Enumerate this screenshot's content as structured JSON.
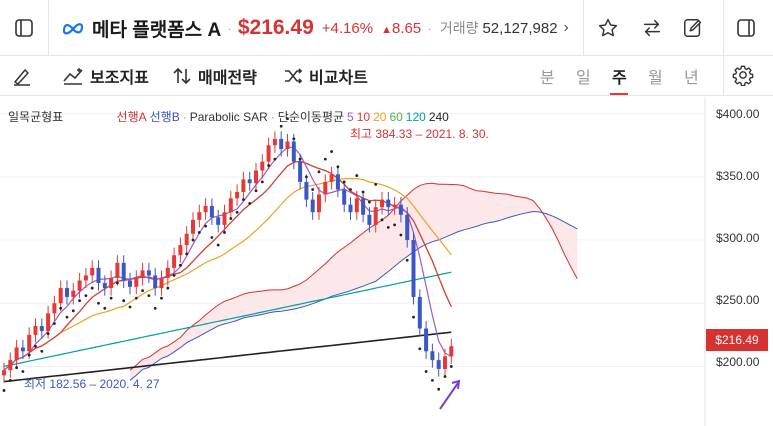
{
  "ticker": {
    "name": "메타 플랫폼스 A",
    "separator": "·",
    "price": "$216.49",
    "change_pct": "+4.16%",
    "change_amt": "8.65",
    "volume_label": "거래량",
    "volume": "52,127,982",
    "more": "›",
    "colors": {
      "up": "#d63232",
      "logo": "#1877f2"
    }
  },
  "toolbar": {
    "tools": [
      "보조지표",
      "매매전략",
      "비교차트"
    ],
    "periods": [
      "분",
      "일",
      "주",
      "월",
      "년"
    ],
    "active_period": "주"
  },
  "chart": {
    "indicator_label": "일목균형표",
    "legend": [
      {
        "label": "선행A",
        "color": "#d63232"
      },
      {
        "label": "선행B",
        "color": "#3b57c4"
      },
      {
        "label": "·",
        "color": "#999999"
      },
      {
        "label": "Parabolic SAR",
        "color": "#333333"
      },
      {
        "label": "·",
        "color": "#999999"
      },
      {
        "label": "단순이동평균",
        "color": "#333333"
      },
      {
        "label": "5",
        "color": "#9b59d6"
      },
      {
        "label": "10",
        "color": "#e53935"
      },
      {
        "label": "20",
        "color": "#f0a020"
      },
      {
        "label": "60",
        "color": "#4caf50"
      },
      {
        "label": "120",
        "color": "#00a0a0"
      },
      {
        "label": "240",
        "color": "#222222"
      }
    ],
    "high_annotation": "최고 384.33 – 2021. 8. 30.",
    "low_annotation": "최저 182.56 – 2020. 4. 27",
    "y_axis": [
      "$400.00",
      "$350.00",
      "$300.00",
      "$250.00",
      "$200.00"
    ],
    "current_price_tag": "$216.49"
  },
  "chart_data": {
    "type": "candlestick",
    "title": "",
    "ylim": [
      160,
      410
    ],
    "current_price": 216.49,
    "high": {
      "value": 384.33,
      "date": "2021. 8. 30."
    },
    "low": {
      "value": 182.56,
      "date": "2020. 4. 27"
    },
    "closes": [
      197,
      205,
      215,
      212,
      225,
      232,
      228,
      242,
      250,
      262,
      255,
      260,
      268,
      272,
      278,
      266,
      262,
      270,
      282,
      268,
      263,
      270,
      276,
      272,
      262,
      270,
      278,
      288,
      296,
      305,
      316,
      322,
      327,
      318,
      312,
      322,
      333,
      338,
      348,
      345,
      355,
      362,
      375,
      380,
      372,
      378,
      362,
      346,
      332,
      322,
      336,
      346,
      352,
      340,
      328,
      322,
      333,
      320,
      312,
      326,
      332,
      326,
      328,
      320,
      300,
      255,
      230,
      212,
      205,
      198,
      208,
      216
    ]
  }
}
